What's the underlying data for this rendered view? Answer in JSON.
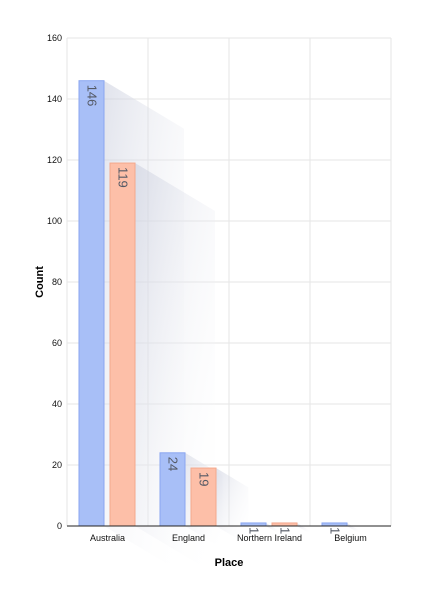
{
  "chart_data": {
    "type": "bar",
    "categories": [
      "Australia",
      "England",
      "Northern Ireland",
      "Belgium"
    ],
    "series": [
      {
        "values": [
          146,
          24,
          1,
          1
        ],
        "color": "#a8bff7",
        "stroke": "#8aa6f0"
      },
      {
        "values": [
          119,
          19,
          1,
          0
        ],
        "color": "#fdbfa8",
        "stroke": "#f4a88c"
      }
    ],
    "xlabel": "Place",
    "ylabel": "Count",
    "ylim": [
      0,
      160
    ],
    "yticks": [
      0,
      20,
      40,
      60,
      80,
      100,
      120,
      140,
      160
    ],
    "grid": true,
    "data_labels": true
  }
}
